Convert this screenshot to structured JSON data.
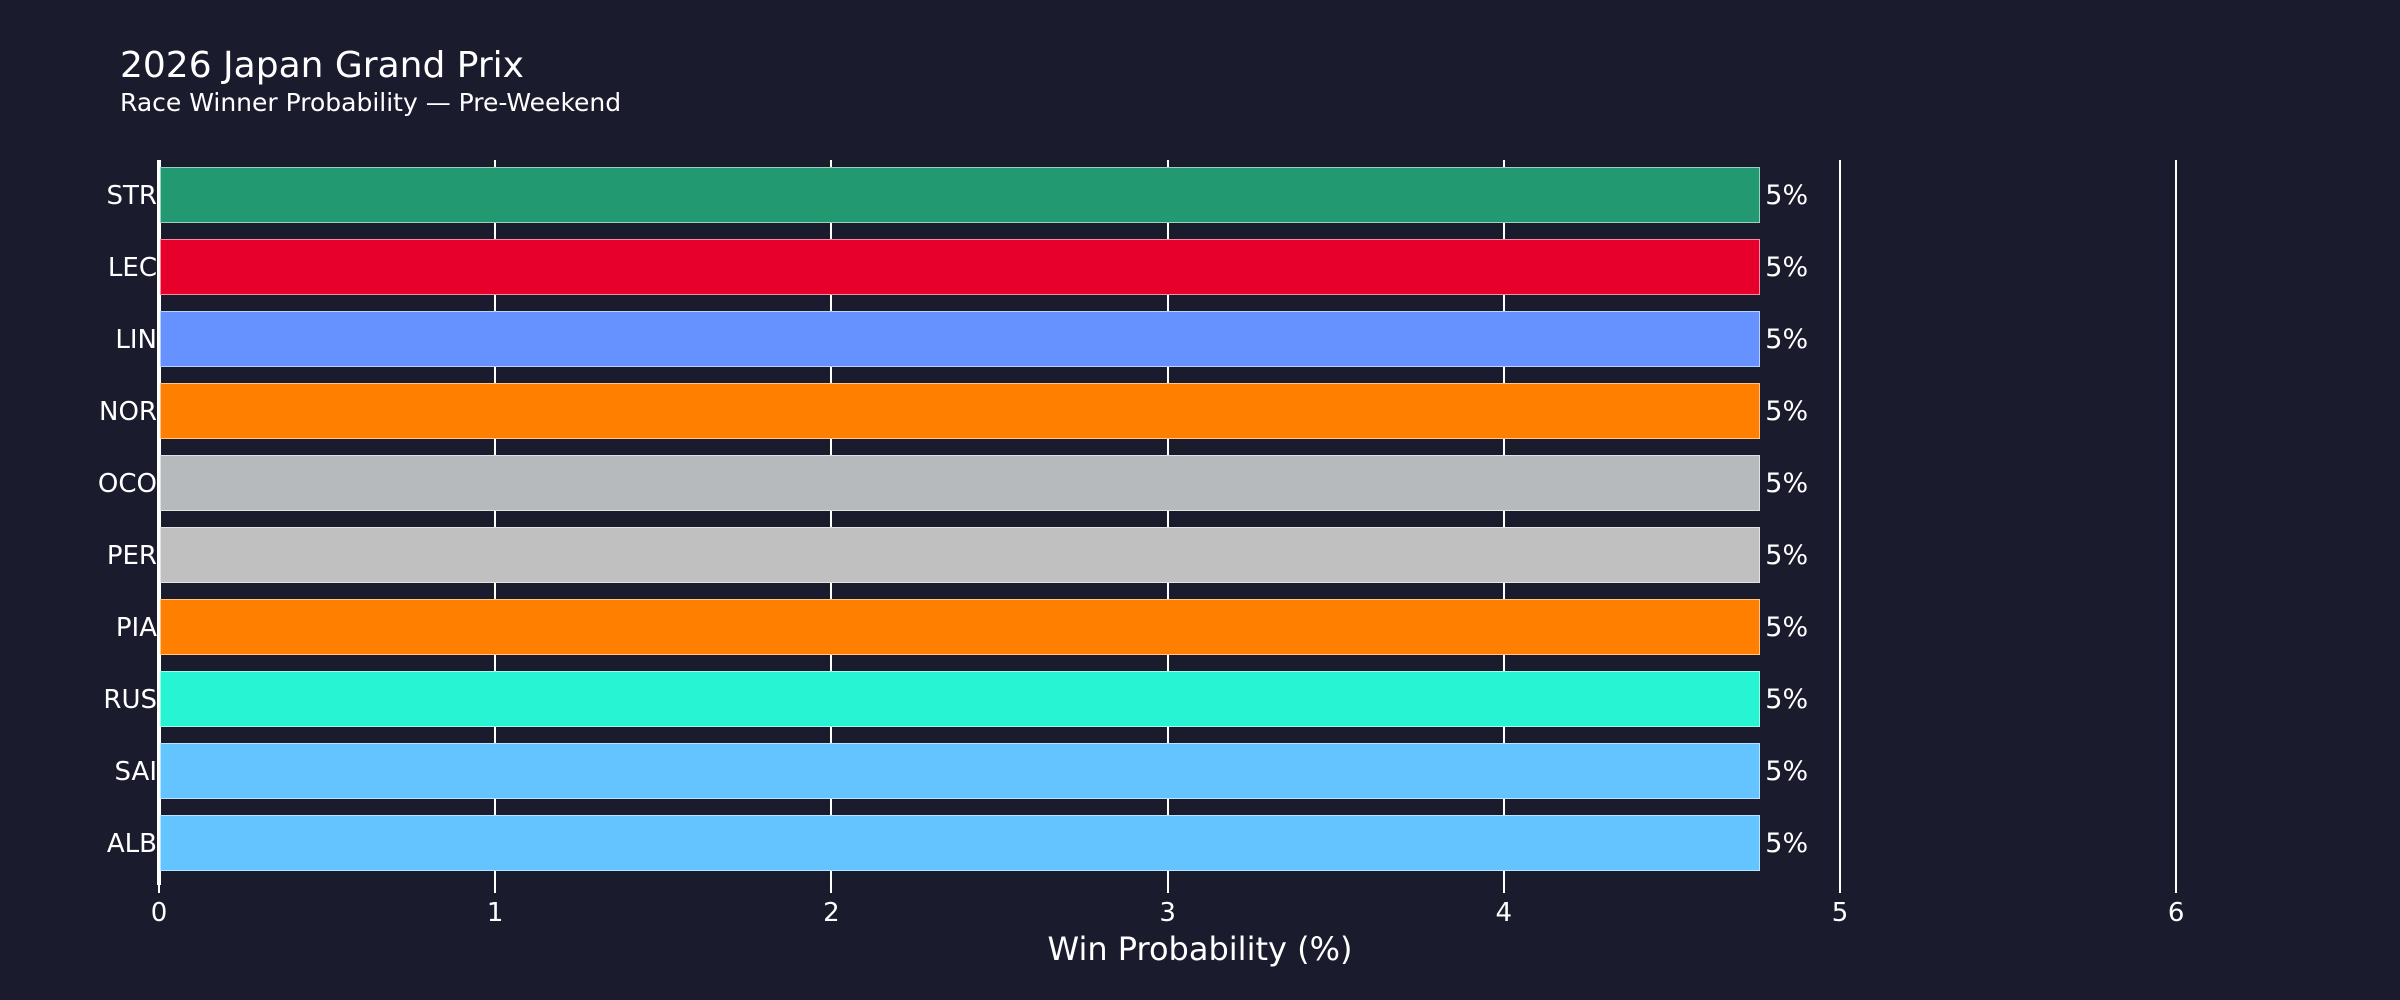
{
  "header": {
    "title": "2026 Japan Grand Prix",
    "subtitle": "Race Winner Probability — Pre-Weekend"
  },
  "axes": {
    "xlabel": "Win Probability (%)",
    "xticks": [
      "0",
      "1",
      "2",
      "3",
      "4",
      "5",
      "6"
    ]
  },
  "bars": [
    {
      "label": "STR",
      "value_label": "5%",
      "color": "#229971"
    },
    {
      "label": "LEC",
      "value_label": "5%",
      "color": "#E8002D"
    },
    {
      "label": "LIN",
      "value_label": "5%",
      "color": "#6692FF"
    },
    {
      "label": "NOR",
      "value_label": "5%",
      "color": "#FF8000"
    },
    {
      "label": "OCO",
      "value_label": "5%",
      "color": "#B6BABD"
    },
    {
      "label": "PER",
      "value_label": "5%",
      "color": "#C0C0C0"
    },
    {
      "label": "PIA",
      "value_label": "5%",
      "color": "#FF8000"
    },
    {
      "label": "RUS",
      "value_label": "5%",
      "color": "#27F4D2"
    },
    {
      "label": "SAI",
      "value_label": "5%",
      "color": "#64C4FF"
    },
    {
      "label": "ALB",
      "value_label": "5%",
      "color": "#64C4FF"
    }
  ],
  "chart_data": {
    "type": "bar",
    "orientation": "horizontal",
    "title": "2026 Japan Grand Prix",
    "subtitle": "Race Winner Probability — Pre-Weekend",
    "xlabel": "Win Probability (%)",
    "ylabel": "",
    "categories": [
      "STR",
      "LEC",
      "LIN",
      "NOR",
      "OCO",
      "PER",
      "PIA",
      "RUS",
      "SAI",
      "ALB"
    ],
    "values": [
      4.76,
      4.76,
      4.76,
      4.76,
      4.76,
      4.76,
      4.76,
      4.76,
      4.76,
      4.76
    ],
    "data_labels": [
      "5%",
      "5%",
      "5%",
      "5%",
      "5%",
      "5%",
      "5%",
      "5%",
      "5%",
      "5%"
    ],
    "colors": [
      "#229971",
      "#E8002D",
      "#6692FF",
      "#FF8000",
      "#B6BABD",
      "#C0C0C0",
      "#FF8000",
      "#27F4D2",
      "#64C4FF",
      "#64C4FF"
    ],
    "xlim": [
      0,
      6
    ],
    "xticks": [
      0,
      1,
      2,
      3,
      4,
      5,
      6
    ],
    "grid": true,
    "legend": false,
    "background": "#1b1b2e"
  }
}
